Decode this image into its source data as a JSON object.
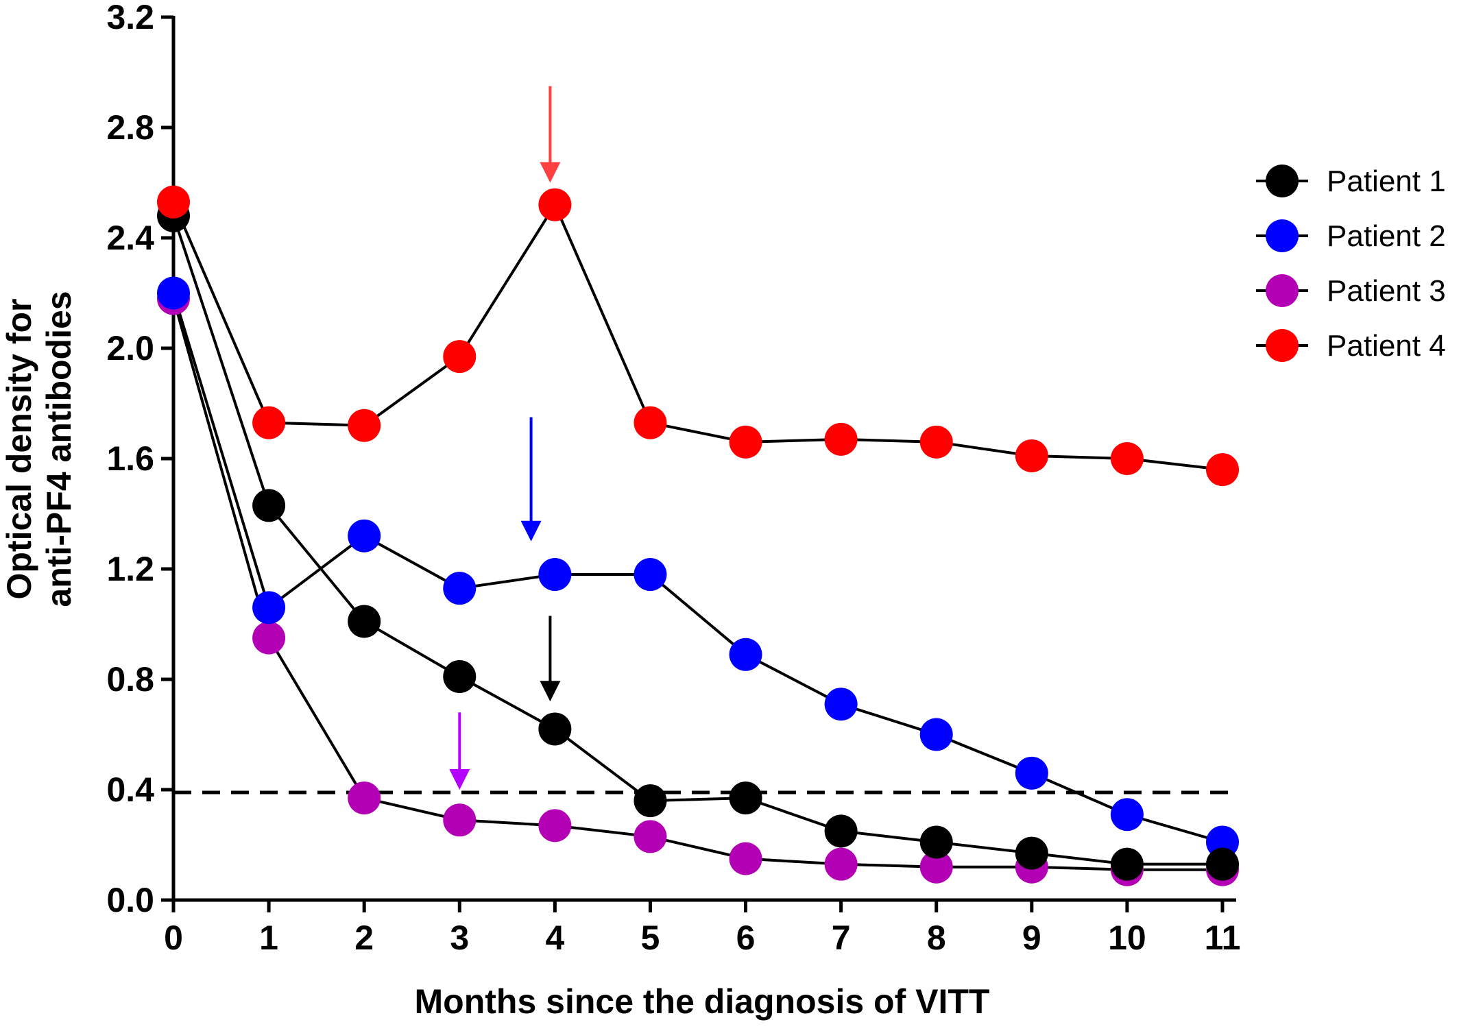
{
  "chart_data": {
    "type": "line",
    "title": "",
    "xlabel": "Months since the diagnosis of VITT",
    "ylabel_lines": [
      "Optical density for",
      "anti-PF4 antibodies"
    ],
    "x": [
      0,
      1,
      2,
      3,
      4,
      5,
      6,
      7,
      8,
      9,
      10,
      11
    ],
    "x_ticks": [
      "0",
      "1",
      "2",
      "3",
      "4",
      "5",
      "6",
      "7",
      "8",
      "9",
      "10",
      "11"
    ],
    "y_ticks": [
      "0.0",
      "0.4",
      "0.8",
      "1.2",
      "1.6",
      "2.0",
      "2.4",
      "2.8",
      "3.2"
    ],
    "xlim": [
      0,
      11
    ],
    "ylim": [
      0,
      3.2
    ],
    "grid": false,
    "legend_position": "right",
    "threshold": {
      "y": 0.39,
      "style": "dashed",
      "color": "#000000"
    },
    "series": [
      {
        "name": "Patient 1",
        "color": "#000000",
        "values": [
          2.48,
          1.43,
          1.01,
          0.81,
          0.62,
          0.36,
          0.37,
          0.25,
          0.21,
          0.17,
          0.13,
          0.13
        ]
      },
      {
        "name": "Patient 2",
        "color": "#0000ff",
        "values": [
          2.2,
          1.06,
          1.32,
          1.13,
          1.18,
          1.18,
          0.89,
          0.71,
          0.6,
          0.46,
          0.31,
          0.21
        ]
      },
      {
        "name": "Patient 3",
        "color": "#b400b4",
        "values": [
          2.18,
          0.95,
          0.37,
          0.29,
          0.27,
          0.23,
          0.15,
          0.13,
          0.12,
          0.12,
          0.11,
          0.11
        ]
      },
      {
        "name": "Patient 4",
        "color": "#ff0000",
        "values": [
          2.53,
          1.73,
          1.72,
          1.97,
          2.52,
          1.73,
          1.66,
          1.67,
          1.66,
          1.61,
          1.6,
          1.56
        ]
      }
    ],
    "annotations": [
      {
        "type": "arrow",
        "x": 3.95,
        "y_from": 2.95,
        "y_to": 2.6,
        "color": "#ff4040"
      },
      {
        "type": "arrow",
        "x": 3.75,
        "y_from": 1.75,
        "y_to": 1.3,
        "color": "#0000ff"
      },
      {
        "type": "arrow",
        "x": 3.95,
        "y_from": 1.03,
        "y_to": 0.72,
        "color": "#000000"
      },
      {
        "type": "arrow",
        "x": 3.0,
        "y_from": 0.68,
        "y_to": 0.4,
        "color": "#b400ff"
      }
    ]
  }
}
